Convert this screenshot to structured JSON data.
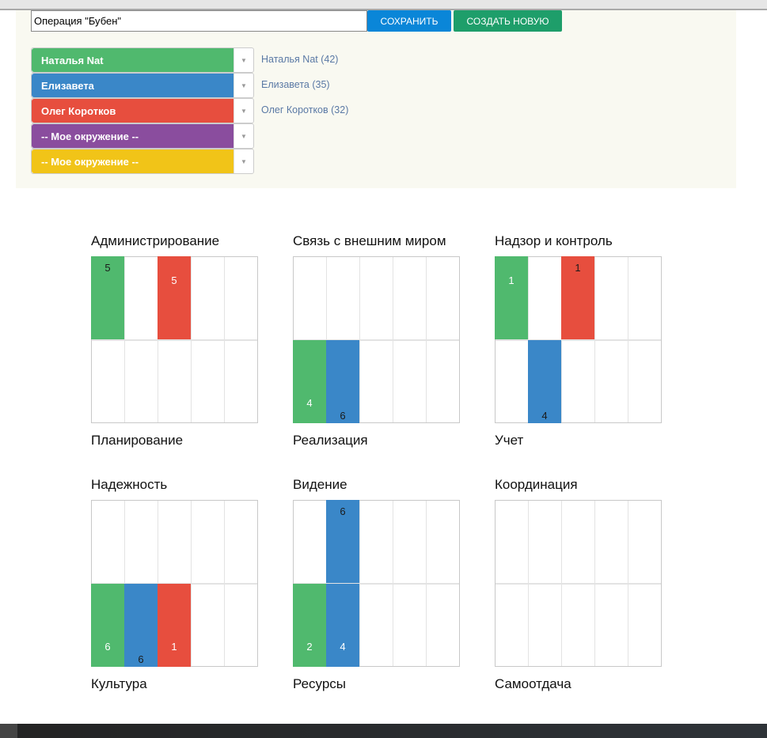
{
  "form": {
    "operation_name": "Операция \"Бубен\"",
    "save_label": "СОХРАНИТЬ",
    "create_new_label": "СОЗДАТЬ НОВУЮ"
  },
  "people": [
    {
      "label": "Наталья Nat",
      "color": "#50b96e",
      "count_label": "Наталья Nat (42)"
    },
    {
      "label": "Елизавета",
      "color": "#3a87c8",
      "count_label": "Елизавета (35)"
    },
    {
      "label": "Олег Коротков",
      "color": "#e74e3e",
      "count_label": "Олег Коротков (32)"
    },
    {
      "label": "-- Мое окружение --",
      "color": "#8a4d9e",
      "count_label": ""
    },
    {
      "label": "-- Мое окружение --",
      "color": "#f1c418",
      "count_label": ""
    }
  ],
  "chart_data": [
    {
      "type": "heatmap",
      "title_top": "Администрирование",
      "title_bottom": "Планирование",
      "columns": 5,
      "rows": [
        "top",
        "bottom"
      ],
      "cells": [
        {
          "col": 0,
          "row": "top",
          "color": "#50b96e",
          "value": 5,
          "text": "dark"
        },
        {
          "col": 2,
          "row": "top",
          "color": "#e74e3e",
          "value": 5,
          "text": "light"
        }
      ]
    },
    {
      "type": "heatmap",
      "title_top": "Связь с внешним миром",
      "title_bottom": "Реализация",
      "columns": 5,
      "rows": [
        "top",
        "bottom"
      ],
      "cells": [
        {
          "col": 0,
          "row": "bottom",
          "color": "#50b96e",
          "value": 4,
          "text": "light"
        },
        {
          "col": 1,
          "row": "bottom",
          "color": "#3a87c8",
          "value": 6,
          "text": "dark"
        }
      ]
    },
    {
      "type": "heatmap",
      "title_top": "Надзор и контроль",
      "title_bottom": "Учет",
      "columns": 5,
      "rows": [
        "top",
        "bottom"
      ],
      "cells": [
        {
          "col": 0,
          "row": "top",
          "color": "#50b96e",
          "value": 1,
          "text": "light"
        },
        {
          "col": 2,
          "row": "top",
          "color": "#e74e3e",
          "value": 1,
          "text": "dark"
        },
        {
          "col": 1,
          "row": "bottom",
          "color": "#3a87c8",
          "value": 4,
          "text": "dark"
        }
      ]
    },
    {
      "type": "heatmap",
      "title_top": "Надежность",
      "title_bottom": "Культура",
      "columns": 5,
      "rows": [
        "top",
        "bottom"
      ],
      "cells": [
        {
          "col": 0,
          "row": "bottom",
          "color": "#50b96e",
          "value": 6,
          "text": "light"
        },
        {
          "col": 1,
          "row": "bottom",
          "color": "#3a87c8",
          "value": 6,
          "text": "dark"
        },
        {
          "col": 2,
          "row": "bottom",
          "color": "#e74e3e",
          "value": 1,
          "text": "light"
        }
      ]
    },
    {
      "type": "heatmap",
      "title_top": "Видение",
      "title_bottom": "Ресурсы",
      "columns": 5,
      "rows": [
        "top",
        "bottom"
      ],
      "cells": [
        {
          "col": 1,
          "row": "top",
          "color": "#3a87c8",
          "value": 6,
          "text": "dark"
        },
        {
          "col": 0,
          "row": "bottom",
          "color": "#50b96e",
          "value": 2,
          "text": "light"
        },
        {
          "col": 1,
          "row": "bottom",
          "color": "#3a87c8",
          "value": 4,
          "text": "light"
        }
      ]
    },
    {
      "type": "heatmap",
      "title_top": "Координация",
      "title_bottom": "Самоотдача",
      "columns": 5,
      "rows": [
        "top",
        "bottom"
      ],
      "cells": []
    }
  ]
}
